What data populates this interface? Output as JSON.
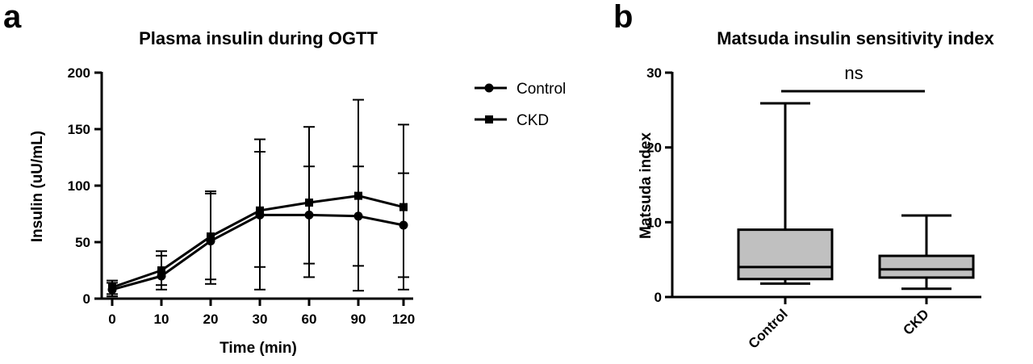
{
  "chart_data": [
    {
      "panel": "a",
      "type": "line",
      "title": "Plasma insulin during OGTT",
      "xlabel": "Time (min)",
      "ylabel": "Insulin (uU/mL)",
      "categories": [
        "0",
        "10",
        "20",
        "30",
        "60",
        "90",
        "120"
      ],
      "ylim": [
        0,
        200
      ],
      "yticks": [
        0,
        50,
        100,
        150,
        200
      ],
      "legend_position": "right",
      "series": [
        {
          "name": "Control",
          "marker": "circle",
          "values": [
            8,
            20,
            51,
            74,
            74,
            73,
            65
          ],
          "err_low": [
            2,
            12,
            17,
            28,
            31,
            29,
            19
          ],
          "err_high": [
            14,
            38,
            93,
            130,
            117,
            117,
            111
          ]
        },
        {
          "name": "CKD",
          "marker": "square",
          "values": [
            10,
            25,
            55,
            78,
            85,
            91,
            81
          ],
          "err_low": [
            4,
            8,
            13,
            8,
            19,
            7,
            8
          ],
          "err_high": [
            16,
            42,
            95,
            141,
            152,
            176,
            154
          ]
        }
      ]
    },
    {
      "panel": "b",
      "type": "box",
      "title": "Matsuda insulin sensitivity index",
      "ylabel": "Matsuda index",
      "categories": [
        "Control",
        "CKD"
      ],
      "ylim": [
        0,
        30
      ],
      "yticks": [
        0,
        10,
        20,
        30
      ],
      "box_color": "#c0c0c0",
      "boxes": [
        {
          "name": "Control",
          "min": 1.8,
          "q1": 2.4,
          "median": 4.0,
          "q3": 9.0,
          "max": 25.9
        },
        {
          "name": "CKD",
          "min": 1.1,
          "q1": 2.6,
          "median": 3.7,
          "q3": 5.5,
          "max": 10.9
        }
      ],
      "annotation": "ns"
    }
  ]
}
